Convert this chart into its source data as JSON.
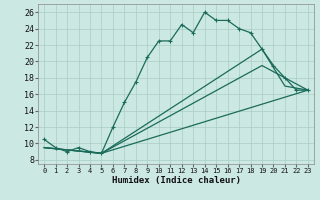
{
  "xlabel": "Humidex (Indice chaleur)",
  "background_color": "#cce8e2",
  "grid_color": "#aaccc6",
  "line_color": "#1a6b5a",
  "xlim": [
    -0.5,
    23.5
  ],
  "ylim": [
    7.5,
    27.0
  ],
  "xticks": [
    0,
    1,
    2,
    3,
    4,
    5,
    6,
    7,
    8,
    9,
    10,
    11,
    12,
    13,
    14,
    15,
    16,
    17,
    18,
    19,
    20,
    21,
    22,
    23
  ],
  "yticks": [
    8,
    10,
    12,
    14,
    16,
    18,
    20,
    22,
    24,
    26
  ],
  "line_main": {
    "x": [
      0,
      1,
      2,
      3,
      4,
      5,
      6,
      7,
      8,
      9,
      10,
      11,
      12,
      13,
      14,
      15,
      16,
      17,
      18,
      19,
      20,
      21,
      22,
      23
    ],
    "y": [
      10.5,
      9.5,
      9.0,
      9.5,
      9.0,
      8.8,
      12.0,
      15.0,
      17.5,
      20.5,
      22.5,
      22.5,
      24.5,
      23.5,
      26.0,
      25.0,
      25.0,
      24.0,
      23.5,
      21.5,
      19.5,
      18.0,
      16.5,
      16.5
    ]
  },
  "line2": {
    "x": [
      0,
      5,
      23
    ],
    "y": [
      9.5,
      8.8,
      16.5
    ]
  },
  "line3": {
    "x": [
      0,
      5,
      19,
      21,
      23
    ],
    "y": [
      9.5,
      8.8,
      19.5,
      18.0,
      16.5
    ]
  },
  "line4": {
    "x": [
      0,
      5,
      19,
      21,
      23
    ],
    "y": [
      9.5,
      8.8,
      21.5,
      17.0,
      16.5
    ]
  }
}
